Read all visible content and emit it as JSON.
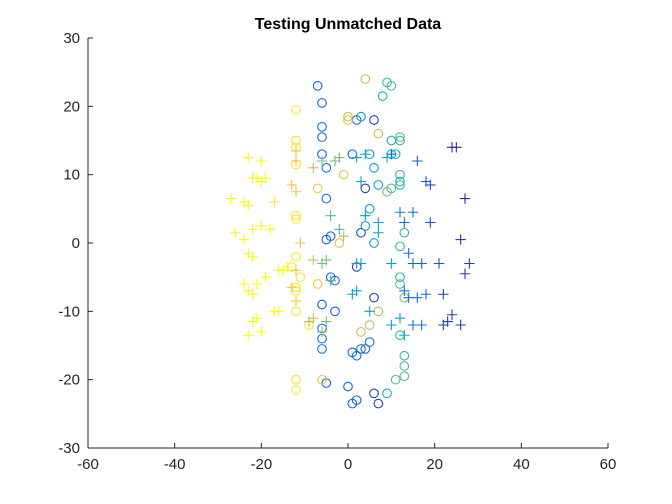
{
  "chart_data": {
    "type": "scatter",
    "title": "Testing Unmatched Data",
    "xlabel": "",
    "ylabel": "",
    "xlim": [
      -60,
      60
    ],
    "ylim": [
      -30,
      30
    ],
    "x_ticks": [
      -60,
      -40,
      -20,
      0,
      20,
      40,
      60
    ],
    "y_ticks": [
      -30,
      -20,
      -10,
      0,
      10,
      20,
      30
    ],
    "grid": false,
    "legend": "none",
    "colormap": [
      "#352a87",
      "#0f5cdd",
      "#1481d6",
      "#06a4ca",
      "#2eb7a4",
      "#87bf77",
      "#d1bb59",
      "#fec832",
      "#f9fb0e"
    ],
    "series": [
      {
        "marker": "circle",
        "points": [
          {
            "x": -7,
            "y": 23,
            "c": 0.15
          },
          {
            "x": -6,
            "y": 20.5,
            "c": 0.15
          },
          {
            "x": -6,
            "y": 17,
            "c": 0.2
          },
          {
            "x": -6,
            "y": 15.5,
            "c": 0.2
          },
          {
            "x": -6,
            "y": 13,
            "c": 0.15
          },
          {
            "x": -5,
            "y": 11,
            "c": 0.2
          },
          {
            "x": -5,
            "y": 6.5,
            "c": 0.2
          },
          {
            "x": -4,
            "y": 1,
            "c": 0.15
          },
          {
            "x": -5,
            "y": 0.5,
            "c": 0.15
          },
          {
            "x": -4,
            "y": -5,
            "c": 0.15
          },
          {
            "x": -3,
            "y": -5.5,
            "c": 0.2
          },
          {
            "x": -6,
            "y": -9,
            "c": 0.15
          },
          {
            "x": -3,
            "y": -10,
            "c": 0.15
          },
          {
            "x": -6,
            "y": -12.5,
            "c": 0.2
          },
          {
            "x": -6,
            "y": -14,
            "c": 0.2
          },
          {
            "x": -6,
            "y": -15.5,
            "c": 0.2
          },
          {
            "x": -5,
            "y": -20.5,
            "c": 0.15
          },
          {
            "x": 0,
            "y": -21,
            "c": 0.15
          },
          {
            "x": 1,
            "y": -23.5,
            "c": 0.15
          },
          {
            "x": 2,
            "y": -23,
            "c": 0.15
          },
          {
            "x": 1,
            "y": -16,
            "c": 0.15
          },
          {
            "x": 2,
            "y": -16.5,
            "c": 0.2
          },
          {
            "x": 3,
            "y": -15.5,
            "c": 0.2
          },
          {
            "x": 4,
            "y": -15.5,
            "c": 0.15
          },
          {
            "x": 5,
            "y": -14.5,
            "c": 0.2
          },
          {
            "x": 6,
            "y": -22,
            "c": 0.05
          },
          {
            "x": 7,
            "y": -23.5,
            "c": 0.05
          },
          {
            "x": 6,
            "y": -8,
            "c": 0.05
          },
          {
            "x": 6,
            "y": 18,
            "c": 0.05
          },
          {
            "x": 4,
            "y": 8,
            "c": 0.05
          },
          {
            "x": 2,
            "y": -3.5,
            "c": 0.05
          },
          {
            "x": 3,
            "y": 1.5,
            "c": 0.1
          },
          {
            "x": 2,
            "y": 18,
            "c": 0.2
          },
          {
            "x": 3,
            "y": 18.5,
            "c": 0.35
          },
          {
            "x": 1,
            "y": 13,
            "c": 0.15
          },
          {
            "x": 5,
            "y": 13,
            "c": 0.35
          },
          {
            "x": 6,
            "y": 11,
            "c": 0.35
          },
          {
            "x": 7,
            "y": 8.5,
            "c": 0.35
          },
          {
            "x": 5,
            "y": 5,
            "c": 0.35
          },
          {
            "x": 4,
            "y": 2.5,
            "c": 0.35
          },
          {
            "x": 6,
            "y": 0,
            "c": 0.35
          },
          {
            "x": 8,
            "y": 21.5,
            "c": 0.45
          },
          {
            "x": 9,
            "y": 23.5,
            "c": 0.5
          },
          {
            "x": 10,
            "y": 23,
            "c": 0.55
          },
          {
            "x": 10,
            "y": 13,
            "c": 0.45
          },
          {
            "x": 10,
            "y": 15,
            "c": 0.45
          },
          {
            "x": 12,
            "y": 15.5,
            "c": 0.55
          },
          {
            "x": 12,
            "y": 15,
            "c": 0.5
          },
          {
            "x": 11,
            "y": 13,
            "c": 0.45
          },
          {
            "x": 12,
            "y": 10,
            "c": 0.5
          },
          {
            "x": 12,
            "y": 9,
            "c": 0.45
          },
          {
            "x": 12,
            "y": 8.5,
            "c": 0.5
          },
          {
            "x": 10,
            "y": 8,
            "c": 0.55
          },
          {
            "x": 9,
            "y": 7.5,
            "c": 0.6
          },
          {
            "x": 13,
            "y": 1.5,
            "c": 0.5
          },
          {
            "x": 12,
            "y": -0.5,
            "c": 0.5
          },
          {
            "x": 12,
            "y": -5,
            "c": 0.5
          },
          {
            "x": 12,
            "y": -6,
            "c": 0.55
          },
          {
            "x": 13,
            "y": -8,
            "c": 0.6
          },
          {
            "x": 12,
            "y": -13.5,
            "c": 0.5
          },
          {
            "x": 13,
            "y": -16.5,
            "c": 0.5
          },
          {
            "x": 13,
            "y": -18,
            "c": 0.55
          },
          {
            "x": 13,
            "y": -19.5,
            "c": 0.55
          },
          {
            "x": 11,
            "y": -20,
            "c": 0.55
          },
          {
            "x": 9,
            "y": -22,
            "c": 0.45
          },
          {
            "x": 7,
            "y": -10,
            "c": 0.7
          },
          {
            "x": 5,
            "y": -12,
            "c": 0.7
          },
          {
            "x": 3,
            "y": -13,
            "c": 0.75
          },
          {
            "x": 4,
            "y": 24,
            "c": 0.75
          },
          {
            "x": 7,
            "y": 16,
            "c": 0.75
          },
          {
            "x": 0,
            "y": 18,
            "c": 0.8
          },
          {
            "x": -1,
            "y": 10,
            "c": 0.8
          },
          {
            "x": -2,
            "y": 0,
            "c": 0.8
          },
          {
            "x": -7,
            "y": 8,
            "c": 0.85
          },
          {
            "x": -7,
            "y": -6,
            "c": 0.85
          },
          {
            "x": -6,
            "y": -20,
            "c": 0.85
          },
          {
            "x": 0,
            "y": 18.5,
            "c": 0.75
          },
          {
            "x": -12,
            "y": 19.5,
            "c": 0.95
          },
          {
            "x": -12,
            "y": 15,
            "c": 0.95
          },
          {
            "x": -12,
            "y": 14,
            "c": 0.95
          },
          {
            "x": -12,
            "y": 11.5,
            "c": 0.95
          },
          {
            "x": -12,
            "y": 4,
            "c": 0.95
          },
          {
            "x": -12,
            "y": 3.5,
            "c": 0.95
          },
          {
            "x": -12,
            "y": -2,
            "c": 0.95
          },
          {
            "x": -13,
            "y": -3.5,
            "c": 0.95
          },
          {
            "x": -11,
            "y": -5,
            "c": 0.95
          },
          {
            "x": -12,
            "y": -6.5,
            "c": 0.95
          },
          {
            "x": -12,
            "y": -7,
            "c": 0.95
          },
          {
            "x": -9,
            "y": -12,
            "c": 0.95
          },
          {
            "x": -12,
            "y": -20,
            "c": 0.95
          },
          {
            "x": -12,
            "y": -21.5,
            "c": 0.95
          },
          {
            "x": -12,
            "y": -10,
            "c": 0.95
          }
        ]
      },
      {
        "marker": "plus",
        "points": [
          {
            "x": 24,
            "y": 14,
            "c": 0.0
          },
          {
            "x": 25,
            "y": 14,
            "c": 0.0
          },
          {
            "x": 27,
            "y": 6.5,
            "c": 0.0
          },
          {
            "x": 26,
            "y": 0.5,
            "c": 0.05
          },
          {
            "x": 28,
            "y": -3,
            "c": 0.05
          },
          {
            "x": 27,
            "y": -4.5,
            "c": 0.05
          },
          {
            "x": 22,
            "y": -7.5,
            "c": 0.05
          },
          {
            "x": 24,
            "y": -10.5,
            "c": 0.05
          },
          {
            "x": 23,
            "y": -11.5,
            "c": 0.05
          },
          {
            "x": 26,
            "y": -12,
            "c": 0.05
          },
          {
            "x": 22,
            "y": -12,
            "c": 0.05
          },
          {
            "x": 18,
            "y": 9,
            "c": 0.1
          },
          {
            "x": 19,
            "y": 8.5,
            "c": 0.1
          },
          {
            "x": 19,
            "y": 3,
            "c": 0.1
          },
          {
            "x": 21,
            "y": -3,
            "c": 0.1
          },
          {
            "x": 17,
            "y": -3,
            "c": 0.15
          },
          {
            "x": 15,
            "y": -3,
            "c": 0.15
          },
          {
            "x": 14,
            "y": -1.5,
            "c": 0.2
          },
          {
            "x": 15,
            "y": 4.5,
            "c": 0.2
          },
          {
            "x": 12,
            "y": 4.5,
            "c": 0.2
          },
          {
            "x": 13,
            "y": 3,
            "c": 0.2
          },
          {
            "x": 16,
            "y": 12,
            "c": 0.15
          },
          {
            "x": 10,
            "y": 13,
            "c": 0.15
          },
          {
            "x": 14,
            "y": -8,
            "c": 0.2
          },
          {
            "x": 16,
            "y": -8,
            "c": 0.2
          },
          {
            "x": 18,
            "y": -7.5,
            "c": 0.15
          },
          {
            "x": 13,
            "y": -7,
            "c": 0.2
          },
          {
            "x": 15,
            "y": -12,
            "c": 0.2
          },
          {
            "x": 17,
            "y": -12,
            "c": 0.2
          },
          {
            "x": 12,
            "y": -11,
            "c": 0.35
          },
          {
            "x": 10,
            "y": -12,
            "c": 0.35
          },
          {
            "x": 13,
            "y": -13.5,
            "c": 0.4
          },
          {
            "x": 10,
            "y": -3,
            "c": 0.35
          },
          {
            "x": 7,
            "y": 1.5,
            "c": 0.35
          },
          {
            "x": 7,
            "y": 3,
            "c": 0.35
          },
          {
            "x": 4,
            "y": 4,
            "c": 0.35
          },
          {
            "x": 3,
            "y": -3,
            "c": 0.35
          },
          {
            "x": 2,
            "y": -3,
            "c": 0.35
          },
          {
            "x": 1,
            "y": -7.5,
            "c": 0.35
          },
          {
            "x": 2,
            "y": -7,
            "c": 0.35
          },
          {
            "x": 5,
            "y": -10,
            "c": 0.35
          },
          {
            "x": 3,
            "y": 9,
            "c": 0.4
          },
          {
            "x": 2,
            "y": 12.5,
            "c": 0.4
          },
          {
            "x": 4,
            "y": 13,
            "c": 0.4
          },
          {
            "x": 9,
            "y": 12.5,
            "c": 0.45
          },
          {
            "x": -2,
            "y": 12.5,
            "c": 0.6
          },
          {
            "x": -3,
            "y": 12,
            "c": 0.6
          },
          {
            "x": -4,
            "y": 4,
            "c": 0.55
          },
          {
            "x": -2,
            "y": 2,
            "c": 0.55
          },
          {
            "x": -5,
            "y": -2.5,
            "c": 0.6
          },
          {
            "x": -6,
            "y": -3,
            "c": 0.6
          },
          {
            "x": -4,
            "y": -5.5,
            "c": 0.55
          },
          {
            "x": -5,
            "y": -11.5,
            "c": 0.6
          },
          {
            "x": -6,
            "y": 12,
            "c": 0.6
          },
          {
            "x": -1,
            "y": 1,
            "c": 0.7
          },
          {
            "x": -6,
            "y": -13,
            "c": 0.65
          },
          {
            "x": -8,
            "y": -2.5,
            "c": 0.75
          },
          {
            "x": -8,
            "y": -11,
            "c": 0.75
          },
          {
            "x": -9,
            "y": -11.5,
            "c": 0.7
          },
          {
            "x": -8,
            "y": 11,
            "c": 0.75
          },
          {
            "x": -12,
            "y": 13.5,
            "c": 0.85
          },
          {
            "x": -12,
            "y": 12,
            "c": 0.85
          },
          {
            "x": -13,
            "y": 8.5,
            "c": 0.85
          },
          {
            "x": -12,
            "y": 7.5,
            "c": 0.85
          },
          {
            "x": -11,
            "y": 0,
            "c": 0.8
          },
          {
            "x": -12,
            "y": -4,
            "c": 0.85
          },
          {
            "x": -12,
            "y": -8.5,
            "c": 0.85
          },
          {
            "x": -13,
            "y": -6.5,
            "c": 0.85
          },
          {
            "x": -17,
            "y": 6,
            "c": 0.95
          },
          {
            "x": -20,
            "y": 12,
            "c": 1.0
          },
          {
            "x": -23,
            "y": 12.5,
            "c": 1.0
          },
          {
            "x": -22,
            "y": 9.5,
            "c": 1.0
          },
          {
            "x": -21,
            "y": 9.5,
            "c": 1.0
          },
          {
            "x": -20,
            "y": 9,
            "c": 1.0
          },
          {
            "x": -19,
            "y": 9.5,
            "c": 1.0
          },
          {
            "x": -27,
            "y": 6.5,
            "c": 1.0
          },
          {
            "x": -24,
            "y": 6,
            "c": 1.0
          },
          {
            "x": -23,
            "y": 5.5,
            "c": 1.0
          },
          {
            "x": -20,
            "y": 2.5,
            "c": 1.0
          },
          {
            "x": -18,
            "y": 2,
            "c": 1.0
          },
          {
            "x": -22,
            "y": 2,
            "c": 1.0
          },
          {
            "x": -26,
            "y": 1.5,
            "c": 1.0
          },
          {
            "x": -24,
            "y": 0.5,
            "c": 1.0
          },
          {
            "x": -23,
            "y": -1.5,
            "c": 1.0
          },
          {
            "x": -22,
            "y": -2,
            "c": 1.0
          },
          {
            "x": -14,
            "y": -3.5,
            "c": 1.0
          },
          {
            "x": -15,
            "y": -4,
            "c": 1.0
          },
          {
            "x": -16,
            "y": -4,
            "c": 1.0
          },
          {
            "x": -19,
            "y": -5,
            "c": 1.0
          },
          {
            "x": -21,
            "y": -6,
            "c": 1.0
          },
          {
            "x": -24,
            "y": -6,
            "c": 1.0
          },
          {
            "x": -23,
            "y": -7,
            "c": 1.0
          },
          {
            "x": -22,
            "y": -7.5,
            "c": 1.0
          },
          {
            "x": -16,
            "y": -10,
            "c": 1.0
          },
          {
            "x": -17,
            "y": -10,
            "c": 1.0
          },
          {
            "x": -21,
            "y": -11,
            "c": 1.0
          },
          {
            "x": -22,
            "y": -11.5,
            "c": 1.0
          },
          {
            "x": -23,
            "y": -13.5,
            "c": 1.0
          },
          {
            "x": -20,
            "y": -13,
            "c": 1.0
          }
        ]
      }
    ]
  }
}
